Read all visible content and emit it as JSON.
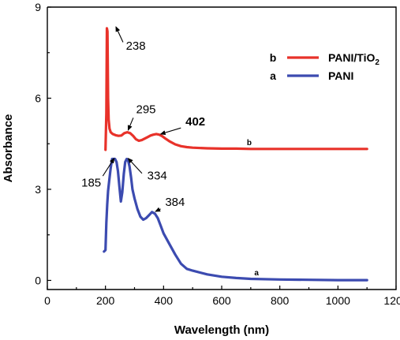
{
  "chart_data": {
    "type": "line",
    "xlabel": "Wavelength (nm)",
    "ylabel": "Absorbance",
    "xlim": [
      0,
      1200
    ],
    "ylim": [
      -0.3,
      9
    ],
    "xticks": [
      0,
      200,
      400,
      600,
      800,
      1000,
      1200
    ],
    "yticks": [
      0,
      3,
      6,
      9
    ],
    "tick_labels_x": [
      "0",
      "200",
      "400",
      "600",
      "800",
      "1000",
      "1200"
    ],
    "tick_labels_y": [
      "0",
      "3",
      "6",
      "9"
    ],
    "grid": false,
    "legend_position": "top-right",
    "series": [
      {
        "key": "b",
        "name": "PANI/TiO",
        "name_sub": "2",
        "color": "#e8322a",
        "x": [
          200,
          203,
          205,
          207,
          209,
          211,
          214,
          218,
          225,
          235,
          245,
          255,
          265,
          275,
          285,
          295,
          305,
          315,
          325,
          335,
          345,
          355,
          365,
          375,
          385,
          395,
          405,
          420,
          440,
          460,
          480,
          500,
          550,
          600,
          650,
          700,
          800,
          900,
          1000,
          1100
        ],
        "y": [
          4.3,
          5.5,
          8.3,
          8.2,
          6.0,
          5.3,
          5.0,
          4.88,
          4.82,
          4.78,
          4.76,
          4.77,
          4.85,
          4.88,
          4.85,
          4.76,
          4.65,
          4.6,
          4.62,
          4.67,
          4.72,
          4.77,
          4.8,
          4.82,
          4.8,
          4.75,
          4.68,
          4.58,
          4.48,
          4.42,
          4.39,
          4.37,
          4.35,
          4.34,
          4.34,
          4.33,
          4.33,
          4.33,
          4.33,
          4.33
        ]
      },
      {
        "key": "a",
        "name": "PANI",
        "name_sub": "",
        "color": "#3c4bb0",
        "x": [
          195,
          200,
          203,
          206,
          209,
          213,
          218,
          223,
          228,
          233,
          238,
          243,
          248,
          253,
          258,
          263,
          268,
          273,
          278,
          283,
          288,
          293,
          300,
          310,
          320,
          330,
          340,
          350,
          360,
          370,
          380,
          390,
          400,
          420,
          440,
          460,
          480,
          500,
          550,
          600,
          650,
          700,
          800,
          900,
          1000,
          1100
        ],
        "y": [
          0.95,
          1.0,
          1.9,
          2.5,
          2.95,
          3.3,
          3.7,
          4.0,
          4.0,
          4.0,
          3.9,
          3.6,
          3.1,
          2.6,
          2.9,
          3.5,
          3.9,
          4.0,
          3.95,
          3.75,
          3.4,
          3.0,
          2.7,
          2.35,
          2.1,
          2.0,
          2.05,
          2.15,
          2.25,
          2.2,
          2.05,
          1.8,
          1.55,
          1.2,
          0.85,
          0.55,
          0.38,
          0.32,
          0.2,
          0.12,
          0.08,
          0.05,
          0.03,
          0.02,
          0.01,
          0.01
        ]
      }
    ],
    "annotations": [
      {
        "text": "238",
        "bold": false,
        "x": 236,
        "y": 8.35,
        "tx": 265,
        "ty": 7.75
      },
      {
        "text": "295",
        "bold": false,
        "x": 278,
        "y": 4.95,
        "tx": 300,
        "ty": 5.45
      },
      {
        "text": "402",
        "bold": true,
        "x": 390,
        "y": 4.82,
        "tx": 470,
        "ty": 5.05
      },
      {
        "text": "185",
        "bold": false,
        "x": 230,
        "y": 4.02,
        "tx": 185,
        "ty": 3.35
      },
      {
        "text": "334",
        "bold": false,
        "x": 278,
        "y": 4.02,
        "tx": 333,
        "ty": 3.45
      },
      {
        "text": "384",
        "bold": false,
        "x": 372,
        "y": 2.27,
        "tx": 400,
        "ty": 2.4
      }
    ],
    "curve_tags": [
      {
        "text": "b",
        "x": 695,
        "y": 4.45
      },
      {
        "text": "a",
        "x": 720,
        "y": 0.17
      }
    ]
  }
}
